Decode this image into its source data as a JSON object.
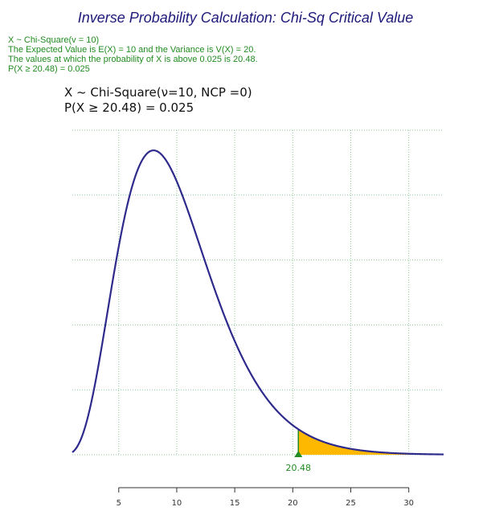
{
  "title": "Inverse Probability Calculation: Chi-Sq Critical Value",
  "info_lines": [
    "X ~ Chi-Square(v = 10)",
    "The Expected Value is E(X) = 10 and the Variance is V(X) = 20.",
    "The values at which the probability of X is above 0.025 is 20.48.",
    "P(X ≥ 20.48) = 0.025"
  ],
  "plot_label_lines": [
    "X ~ Chi-Square(ν=10, NCP =0)",
    "P(X ≥ 20.48) = 0.025"
  ],
  "colors": {
    "title": "#1e1a7a",
    "info_text": "#228b22",
    "curve": "#2e2a8c",
    "shaded_area": "#ffb800",
    "critical_marker": "#228b22",
    "grid": "#8fc99a"
  },
  "chart_data": {
    "type": "area",
    "distribution": "chi-square",
    "df": 10,
    "ncp": 0,
    "critical_value": 20.48,
    "critical_label": "20.48",
    "tail": "upper",
    "tail_probability": 0.025,
    "xlim": [
      1,
      33
    ],
    "x_ticks": [
      5,
      10,
      15,
      20,
      25,
      30
    ],
    "x_tick_labels": [
      "5",
      "10",
      "15",
      "20",
      "25",
      "30"
    ],
    "grid": true,
    "xlabel": "",
    "ylabel": ""
  }
}
